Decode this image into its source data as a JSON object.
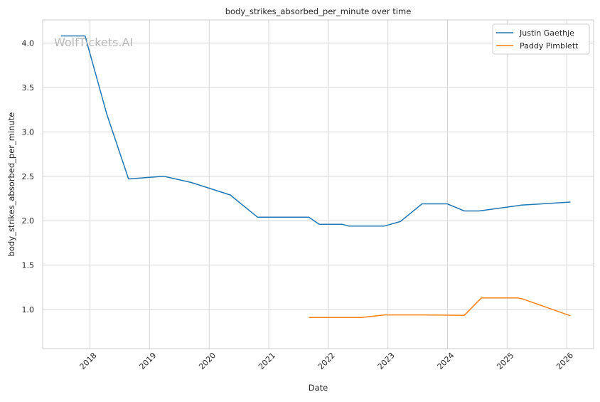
{
  "watermark": "WolfTickets.AI",
  "chart_data": {
    "type": "line",
    "title": "body_strikes_absorbed_per_minute over time",
    "xlabel": "Date",
    "ylabel": "body_strikes_absorbed_per_minute",
    "x_ticks": [
      "2018",
      "2019",
      "2020",
      "2021",
      "2022",
      "2023",
      "2024",
      "2025",
      "2026"
    ],
    "y_ticks": [
      "1.0",
      "1.5",
      "2.0",
      "2.5",
      "3.0",
      "3.5",
      "4.0"
    ],
    "xlim": [
      "2017-03-17",
      "2026-06-15"
    ],
    "ylim": [
      0.56,
      4.26
    ],
    "grid": true,
    "legend_position": "top-right",
    "series": [
      {
        "name": "Justin Gaethje",
        "color": "#1f77b4",
        "points": [
          [
            "2017-07-07",
            4.08
          ],
          [
            "2017-12-02",
            4.08
          ],
          [
            "2018-04-14",
            3.2
          ],
          [
            "2018-08-25",
            2.47
          ],
          [
            "2019-03-30",
            2.5
          ],
          [
            "2019-09-14",
            2.43
          ],
          [
            "2020-05-09",
            2.29
          ],
          [
            "2020-10-24",
            2.04
          ],
          [
            "2021-09-04",
            2.04
          ],
          [
            "2021-11-06",
            1.96
          ],
          [
            "2022-03-26",
            1.96
          ],
          [
            "2022-05-07",
            1.94
          ],
          [
            "2022-12-10",
            1.94
          ],
          [
            "2023-03-18",
            1.99
          ],
          [
            "2023-07-29",
            2.19
          ],
          [
            "2023-12-30",
            2.19
          ],
          [
            "2024-04-13",
            2.11
          ],
          [
            "2024-07-13",
            2.11
          ],
          [
            "2025-03-08",
            2.17
          ],
          [
            "2025-03-29",
            2.175
          ],
          [
            "2026-01-24",
            2.21
          ]
        ]
      },
      {
        "name": "Paddy Pimblett",
        "color": "#ff7f0e",
        "points": [
          [
            "2021-09-04",
            0.91
          ],
          [
            "2022-03-19",
            0.91
          ],
          [
            "2022-07-23",
            0.91
          ],
          [
            "2022-07-23",
            0.91
          ],
          [
            "2022-07-23",
            0.91
          ],
          [
            "2022-12-10",
            0.94
          ],
          [
            "2023-07-29",
            0.94
          ],
          [
            "2024-04-13",
            0.935
          ],
          [
            "2024-07-27",
            1.13
          ],
          [
            "2025-03-08",
            1.13
          ],
          [
            "2025-04-05",
            1.12
          ],
          [
            "2026-01-24",
            0.93
          ]
        ]
      }
    ]
  }
}
